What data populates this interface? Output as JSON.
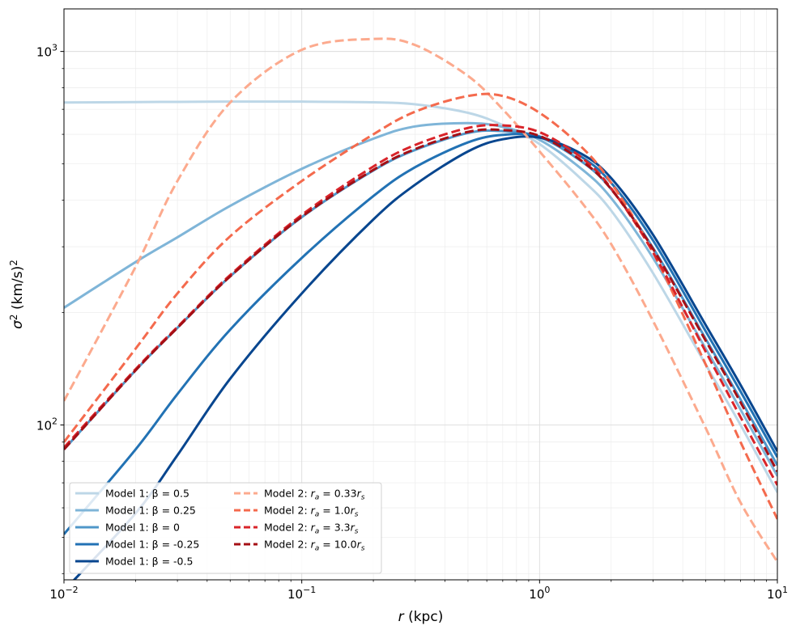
{
  "chart_data": {
    "type": "line",
    "title": "",
    "xlabel": {
      "var": "r",
      "unit": " (kpc)"
    },
    "ylabel": {
      "sym": "σ",
      "sup": "2",
      "unit": " (km/s)",
      "unit_sup": "2"
    },
    "xscale": "log",
    "yscale": "log",
    "xlim": [
      0.01,
      10
    ],
    "ylim": [
      38.5,
      1300
    ],
    "grid": true,
    "legend_position": "lower-left",
    "x_ticks": [
      {
        "value": 0.01,
        "base": "10",
        "exp": "−2"
      },
      {
        "value": 0.1,
        "base": "10",
        "exp": "−1"
      },
      {
        "value": 1,
        "base": "10",
        "exp": "0"
      },
      {
        "value": 10,
        "base": "10",
        "exp": "1"
      }
    ],
    "y_ticks": [
      {
        "value": 100,
        "base": "10",
        "exp": "2"
      },
      {
        "value": 1000,
        "base": "10",
        "exp": "3"
      }
    ],
    "x": [
      0.01,
      0.02,
      0.03,
      0.05,
      0.1,
      0.2,
      0.3,
      0.5,
      0.7,
      1,
      1.5,
      2,
      3,
      5,
      7,
      10
    ],
    "series": [
      {
        "name": "Model 1: β = 0.5",
        "label_text": "Model 1: β = 0.5",
        "color": "#bdd7e7",
        "dash": "solid",
        "values": [
          730,
          732,
          733,
          734,
          734,
          731,
          722,
          685,
          635,
          565,
          455,
          375,
          255,
          145,
          100,
          66
        ]
      },
      {
        "name": "Model 1: β = 0.25",
        "label_text": "Model 1: β = 0.25",
        "color": "#7fb5d8",
        "dash": "solid",
        "values": [
          206,
          273,
          318,
          386,
          485,
          584,
          630,
          643,
          628,
          580,
          485,
          405,
          280,
          160,
          110,
          73
        ]
      },
      {
        "name": "Model 1: β = 0",
        "label_text": "Model 1: β = 0",
        "color": "#4f97c9",
        "dash": "solid",
        "values": [
          86,
          140,
          182,
          250,
          360,
          480,
          545,
          605,
          612,
          590,
          508,
          428,
          298,
          170,
          117,
          78
        ]
      },
      {
        "name": "Model 1: β = -0.25",
        "label_text": "Model 1: β = -0.25",
        "color": "#2272b4",
        "dash": "solid",
        "values": [
          51,
          86,
          121,
          180,
          280,
          410,
          490,
          571,
          598,
          592,
          522,
          445,
          312,
          178,
          123,
          82
        ]
      },
      {
        "name": "Model 1: β = -0.5",
        "label_text": "Model 1: β = -0.5",
        "color": "#08468f",
        "dash": "solid",
        "values": [
          36,
          58,
          83,
          133,
          225,
          355,
          440,
          540,
          582,
          588,
          532,
          458,
          323,
          185,
          128,
          85
        ]
      },
      {
        "name": "Model 2: r_a = 0.33r_s",
        "label_head": "Model 2: ",
        "label_var": "r",
        "label_sub": "a",
        "label_mid": " = 0.33",
        "label_var2": "r",
        "label_sub2": "s",
        "color": "#fcaa8e",
        "dash": "dashed",
        "values": [
          116,
          265,
          450,
          730,
          1010,
          1080,
          1040,
          860,
          700,
          540,
          395,
          305,
          190,
          98,
          62,
          43
        ]
      },
      {
        "name": "Model 2: r_a = 1.0r_s",
        "label_head": "Model 2: ",
        "label_var": "r",
        "label_sub": "a",
        "label_mid": " = 1.0",
        "label_var2": "r",
        "label_sub2": "s",
        "color": "#f46a4d",
        "dash": "dashed",
        "values": [
          90,
          160,
          225,
          320,
          450,
          600,
          690,
          760,
          760,
          685,
          555,
          445,
          290,
          145,
          90,
          56
        ]
      },
      {
        "name": "Model 2: r_a = 3.3r_s",
        "label_head": "Model 2: ",
        "label_var": "r",
        "label_sub": "a",
        "label_mid": " = 3.3",
        "label_var2": "r",
        "label_sub2": "s",
        "color": "#d9242a",
        "dash": "dashed",
        "values": [
          87,
          141,
          183,
          252,
          365,
          492,
          562,
          624,
          634,
          608,
          520,
          430,
          290,
          157,
          105,
          69
        ]
      },
      {
        "name": "Model 2: r_a = 10.0r_s",
        "label_head": "Model 2: ",
        "label_var": "r",
        "label_sub": "a",
        "label_mid": " = 10.0",
        "label_var2": "r",
        "label_sub2": "s",
        "color": "#a50f15",
        "dash": "dashed",
        "values": [
          86,
          140,
          182,
          250,
          361,
          482,
          548,
          609,
          616,
          594,
          510,
          428,
          296,
          168,
          115,
          75
        ]
      }
    ]
  }
}
